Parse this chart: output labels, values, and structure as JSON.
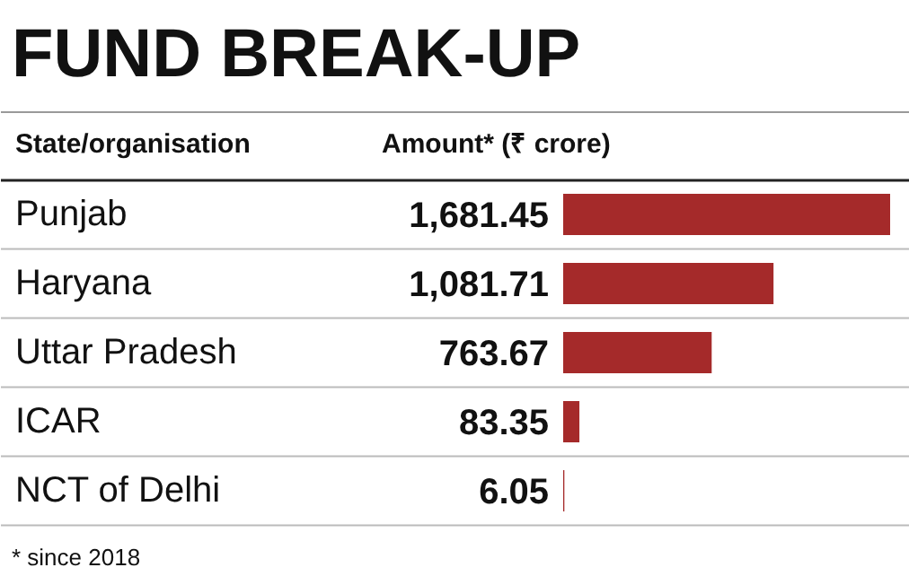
{
  "chart_data": {
    "type": "bar",
    "orientation": "horizontal",
    "title": "FUND BREAK-UP",
    "ylabel": "State/organisation",
    "xlabel": "Amount* (₹ crore)",
    "categories": [
      "Punjab",
      "Haryana",
      "Uttar Pradesh",
      "ICAR",
      "NCT of Delhi"
    ],
    "values": [
      1681.45,
      1081.71,
      763.67,
      83.35,
      6.05
    ],
    "value_labels": [
      "1,681.45",
      "1,081.71",
      "763.67",
      "83.35",
      "6.05"
    ],
    "color": "#a52a2a",
    "annotations": [
      "* since 2018"
    ]
  }
}
